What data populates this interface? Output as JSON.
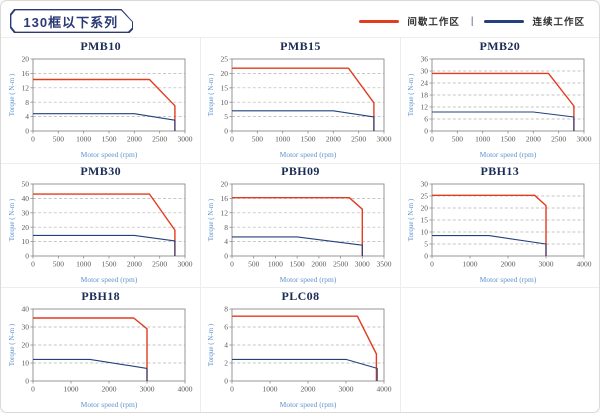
{
  "page": {
    "title": "130框以下系列",
    "legend": [
      {
        "label": "间歇工作区",
        "color": "#e23c1e"
      },
      {
        "label": "连续工作区",
        "color": "#24417e"
      }
    ],
    "legend_separator": "|",
    "accent_navy": "#2b3a76"
  },
  "chart_data": [
    {
      "type": "line",
      "title": "PMB10",
      "xlabel": "Motor speed (rpm)",
      "ylabel": "Torque ( N-m )",
      "xlim": [
        0,
        3000
      ],
      "ylim": [
        0,
        20
      ],
      "xticks": [
        0,
        500,
        1000,
        1500,
        2000,
        2500,
        3000
      ],
      "yticks": [
        0,
        4,
        8,
        12,
        16,
        20
      ],
      "grid": "horizontal-dashed",
      "legend_position": "none",
      "series": [
        {
          "name": "间歇工作区",
          "color": "#e23c1e",
          "points": [
            [
              0,
              14.3
            ],
            [
              2300,
              14.3
            ],
            [
              2800,
              7
            ],
            [
              2800,
              0
            ]
          ]
        },
        {
          "name": "连续工作区",
          "color": "#24417e",
          "points": [
            [
              0,
              4.8
            ],
            [
              2000,
              4.8
            ],
            [
              2800,
              3
            ],
            [
              2800,
              0
            ]
          ]
        }
      ]
    },
    {
      "type": "line",
      "title": "PMB15",
      "xlabel": "Motor speed (rpm)",
      "ylabel": "Torque ( N-m )",
      "xlim": [
        0,
        3000
      ],
      "ylim": [
        0,
        25
      ],
      "xticks": [
        0,
        500,
        1000,
        1500,
        2000,
        2500,
        3000
      ],
      "yticks": [
        0,
        5,
        10,
        15,
        20,
        25
      ],
      "grid": "horizontal-dashed",
      "legend_position": "none",
      "series": [
        {
          "name": "间歇工作区",
          "color": "#e23c1e",
          "points": [
            [
              0,
              21.8
            ],
            [
              2300,
              21.8
            ],
            [
              2800,
              9.8
            ],
            [
              2800,
              0
            ]
          ]
        },
        {
          "name": "连续工作区",
          "color": "#24417e",
          "points": [
            [
              0,
              7
            ],
            [
              2000,
              7
            ],
            [
              2800,
              4.9
            ],
            [
              2800,
              0
            ]
          ]
        }
      ]
    },
    {
      "type": "line",
      "title": "PMB20",
      "xlabel": "Motor speed (rpm)",
      "ylabel": "Torque ( N-m )",
      "xlim": [
        0,
        3000
      ],
      "ylim": [
        0,
        36
      ],
      "xticks": [
        0,
        500,
        1000,
        1500,
        2000,
        2500,
        3000
      ],
      "yticks": [
        0,
        6,
        12,
        18,
        24,
        30,
        36
      ],
      "grid": "horizontal-dashed",
      "legend_position": "none",
      "series": [
        {
          "name": "间歇工作区",
          "color": "#e23c1e",
          "points": [
            [
              0,
              28.8
            ],
            [
              2300,
              28.8
            ],
            [
              2800,
              12.5
            ],
            [
              2800,
              0
            ]
          ]
        },
        {
          "name": "连续工作区",
          "color": "#24417e",
          "points": [
            [
              0,
              9.5
            ],
            [
              2000,
              9.5
            ],
            [
              2800,
              7
            ],
            [
              2800,
              0
            ]
          ]
        }
      ]
    },
    {
      "type": "line",
      "title": "PMB30",
      "xlabel": "Motor speed (rpm)",
      "ylabel": "Torque ( N-m )",
      "xlim": [
        0,
        3000
      ],
      "ylim": [
        0,
        50
      ],
      "xticks": [
        0,
        500,
        1000,
        1500,
        2000,
        2500,
        3000
      ],
      "yticks": [
        0,
        10,
        20,
        30,
        40,
        50
      ],
      "grid": "horizontal-dashed",
      "legend_position": "none",
      "series": [
        {
          "name": "间歇工作区",
          "color": "#e23c1e",
          "points": [
            [
              0,
              43
            ],
            [
              2300,
              43
            ],
            [
              2800,
              18
            ],
            [
              2800,
              0
            ]
          ]
        },
        {
          "name": "连续工作区",
          "color": "#24417e",
          "points": [
            [
              0,
              14.3
            ],
            [
              2000,
              14.3
            ],
            [
              2800,
              10.5
            ],
            [
              2800,
              0
            ]
          ]
        }
      ]
    },
    {
      "type": "line",
      "title": "PBH09",
      "xlabel": "Motor speed (rpm)",
      "ylabel": "Torque ( N-m )",
      "xlim": [
        0,
        3500
      ],
      "ylim": [
        0,
        20
      ],
      "xticks": [
        0,
        500,
        1000,
        1500,
        2000,
        2500,
        3000,
        3500
      ],
      "yticks": [
        0,
        4,
        8,
        12,
        16,
        20
      ],
      "grid": "horizontal-dashed",
      "legend_position": "none",
      "series": [
        {
          "name": "间歇工作区",
          "color": "#e23c1e",
          "points": [
            [
              0,
              16.2
            ],
            [
              2700,
              16.2
            ],
            [
              3000,
              13
            ],
            [
              3000,
              0
            ]
          ]
        },
        {
          "name": "连续工作区",
          "color": "#24417e",
          "points": [
            [
              0,
              5.3
            ],
            [
              1500,
              5.3
            ],
            [
              3000,
              3
            ],
            [
              3000,
              0
            ]
          ]
        }
      ]
    },
    {
      "type": "line",
      "title": "PBH13",
      "xlabel": "Motor speed (rpm)",
      "ylabel": "Torque ( N-m )",
      "xlim": [
        0,
        4000
      ],
      "ylim": [
        0,
        30
      ],
      "xticks": [
        0,
        1000,
        2000,
        3000,
        4000
      ],
      "yticks": [
        0,
        5,
        10,
        15,
        20,
        25,
        30
      ],
      "grid": "horizontal-dashed",
      "legend_position": "none",
      "series": [
        {
          "name": "间歇工作区",
          "color": "#e23c1e",
          "points": [
            [
              0,
              25.3
            ],
            [
              2700,
              25.3
            ],
            [
              3000,
              21
            ],
            [
              3000,
              0
            ]
          ]
        },
        {
          "name": "连续工作区",
          "color": "#24417e",
          "points": [
            [
              0,
              8.5
            ],
            [
              1500,
              8.5
            ],
            [
              3000,
              5
            ],
            [
              3000,
              0
            ]
          ]
        }
      ]
    },
    {
      "type": "line",
      "title": "PBH18",
      "xlabel": "Motor speed (rpm)",
      "ylabel": "Torque ( N-m )",
      "xlim": [
        0,
        4000
      ],
      "ylim": [
        0,
        40
      ],
      "xticks": [
        0,
        1000,
        2000,
        3000,
        4000
      ],
      "yticks": [
        0,
        10,
        20,
        30,
        40
      ],
      "grid": "horizontal-dashed",
      "legend_position": "none",
      "series": [
        {
          "name": "间歇工作区",
          "color": "#e23c1e",
          "points": [
            [
              0,
              35
            ],
            [
              2650,
              35
            ],
            [
              3000,
              29
            ],
            [
              3000,
              0
            ]
          ]
        },
        {
          "name": "连续工作区",
          "color": "#24417e",
          "points": [
            [
              0,
              12
            ],
            [
              1500,
              12
            ],
            [
              3000,
              7
            ],
            [
              3000,
              0
            ]
          ]
        }
      ]
    },
    {
      "type": "line",
      "title": "PLC08",
      "xlabel": "Motor speed (rpm)",
      "ylabel": "Torque ( N-m )",
      "xlim": [
        0,
        4000
      ],
      "ylim": [
        0,
        8
      ],
      "xticks": [
        0,
        1000,
        2000,
        3000,
        4000
      ],
      "yticks": [
        0,
        2,
        4,
        6,
        8
      ],
      "grid": "horizontal-dashed",
      "legend_position": "none",
      "series": [
        {
          "name": "间歇工作区",
          "color": "#e23c1e",
          "points": [
            [
              0,
              7.2
            ],
            [
              3300,
              7.2
            ],
            [
              3800,
              3
            ],
            [
              3800,
              0
            ]
          ]
        },
        {
          "name": "连续工作区",
          "color": "#24417e",
          "points": [
            [
              0,
              2.4
            ],
            [
              3000,
              2.4
            ],
            [
              3820,
              1.4
            ],
            [
              3820,
              0
            ]
          ]
        }
      ]
    }
  ]
}
